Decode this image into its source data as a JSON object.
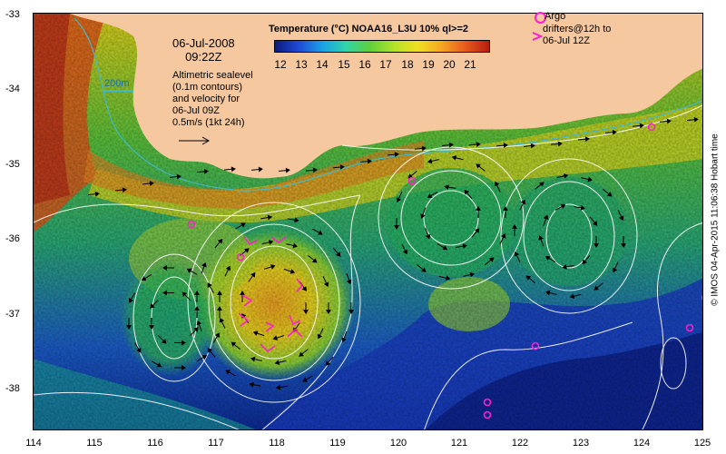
{
  "map": {
    "date": "06-Jul-2008",
    "time": "09:22Z",
    "legend_title": "Temperature (°C) NOAA16_L3U 10% ql>=2",
    "colorbar_ticks": [
      "12",
      "13",
      "14",
      "15",
      "16",
      "17",
      "18",
      "19",
      "20",
      "21"
    ],
    "scale_label": "200m",
    "altimetry_lines": [
      "Altimetric sealevel",
      "(0.1m contours)",
      "and velocity for",
      "06-Jul 09Z",
      "0.5m/s (1kt 24h)"
    ],
    "argo_title": "Argo",
    "argo_lines": [
      "drifters@12h to",
      "06-Jul 12Z"
    ],
    "credit": "© IMOS 04-Apr-2015 11:06:38 Hobart time",
    "y_ticks": [
      "-33",
      "-34",
      "-35",
      "-36",
      "-37",
      "-38"
    ],
    "x_ticks": [
      "114",
      "115",
      "116",
      "117",
      "118",
      "119",
      "120",
      "121",
      "122",
      "123",
      "124",
      "125"
    ],
    "colors": {
      "land": "#f5c8a0",
      "argo": "#ff1fd0",
      "contour": "#ffffff",
      "shelf": "#43b9c8"
    }
  }
}
